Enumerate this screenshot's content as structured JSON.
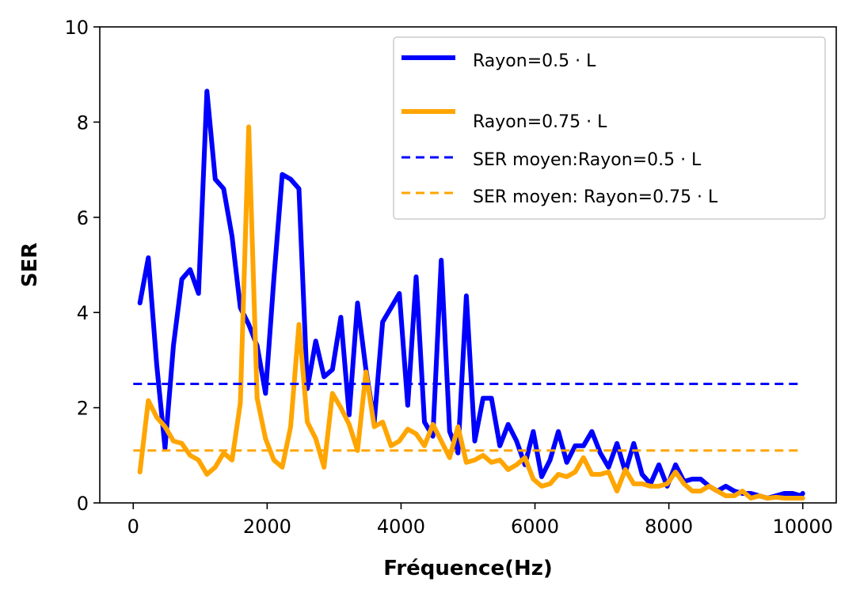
{
  "chart_data": {
    "type": "line",
    "title": "",
    "xlabel": "Fréquence(Hz)",
    "ylabel": "SER",
    "xlim": [
      -500,
      10500
    ],
    "ylim": [
      0,
      10
    ],
    "xticks": [
      0,
      2000,
      4000,
      6000,
      8000,
      10000
    ],
    "yticks": [
      0,
      2,
      4,
      6,
      8,
      10
    ],
    "grid": false,
    "legend_position": "top-right",
    "series": [
      {
        "name": "Rayon=0.5 · L",
        "color": "#0000ff",
        "style": "solid",
        "x": [
          100,
          225,
          350,
          475,
          600,
          725,
          850,
          975,
          1100,
          1225,
          1350,
          1475,
          1600,
          1725,
          1850,
          1975,
          2100,
          2225,
          2350,
          2475,
          2600,
          2725,
          2850,
          2975,
          3100,
          3225,
          3350,
          3475,
          3600,
          3725,
          3850,
          3975,
          4100,
          4225,
          4350,
          4475,
          4600,
          4725,
          4850,
          4975,
          5100,
          5225,
          5350,
          5475,
          5600,
          5725,
          5850,
          5975,
          6100,
          6225,
          6350,
          6475,
          6600,
          6725,
          6850,
          6975,
          7100,
          7225,
          7350,
          7475,
          7600,
          7725,
          7850,
          7975,
          8100,
          8225,
          8350,
          8475,
          8600,
          8725,
          8850,
          8975,
          9100,
          9225,
          9350,
          9475,
          9600,
          9725,
          9850,
          9975,
          10000
        ],
        "y": [
          4.2,
          5.15,
          2.9,
          1.15,
          3.3,
          4.7,
          4.9,
          4.4,
          8.65,
          6.8,
          6.6,
          5.6,
          4.1,
          3.75,
          3.3,
          2.3,
          4.7,
          6.9,
          6.8,
          6.6,
          2.4,
          3.4,
          2.65,
          2.8,
          3.9,
          1.85,
          4.2,
          2.8,
          1.7,
          3.8,
          4.1,
          4.4,
          2.05,
          4.75,
          1.7,
          1.4,
          5.1,
          1.5,
          1.05,
          4.35,
          1.3,
          2.2,
          2.2,
          1.2,
          1.65,
          1.3,
          0.8,
          1.5,
          0.55,
          0.9,
          1.5,
          0.85,
          1.2,
          1.2,
          1.5,
          1.05,
          0.75,
          1.25,
          0.65,
          1.25,
          0.6,
          0.4,
          0.8,
          0.35,
          0.8,
          0.45,
          0.5,
          0.5,
          0.35,
          0.25,
          0.35,
          0.25,
          0.2,
          0.2,
          0.15,
          0.1,
          0.15,
          0.2,
          0.2,
          0.15,
          0.2
        ]
      },
      {
        "name": "Rayon=0.75 ·  L",
        "color": "#ffa500",
        "style": "solid",
        "x": [
          100,
          225,
          350,
          475,
          600,
          725,
          850,
          975,
          1100,
          1225,
          1350,
          1475,
          1600,
          1725,
          1850,
          1975,
          2100,
          2225,
          2350,
          2475,
          2600,
          2725,
          2850,
          2975,
          3100,
          3225,
          3350,
          3475,
          3600,
          3725,
          3850,
          3975,
          4100,
          4225,
          4350,
          4475,
          4600,
          4725,
          4850,
          4975,
          5100,
          5225,
          5350,
          5475,
          5600,
          5725,
          5850,
          5975,
          6100,
          6225,
          6350,
          6475,
          6600,
          6725,
          6850,
          6975,
          7100,
          7225,
          7350,
          7475,
          7600,
          7725,
          7850,
          7975,
          8100,
          8225,
          8350,
          8475,
          8600,
          8725,
          8850,
          8975,
          9100,
          9225,
          9350,
          9475,
          9600,
          9725,
          9850,
          9975,
          10000
        ],
        "y": [
          0.65,
          2.15,
          1.8,
          1.6,
          1.3,
          1.25,
          1.0,
          0.9,
          0.6,
          0.75,
          1.05,
          0.9,
          2.1,
          7.9,
          2.2,
          1.35,
          0.9,
          0.75,
          1.6,
          3.75,
          1.7,
          1.35,
          0.75,
          2.3,
          2.0,
          1.65,
          1.1,
          2.75,
          1.6,
          1.7,
          1.2,
          1.3,
          1.55,
          1.45,
          1.2,
          1.65,
          1.3,
          0.95,
          1.6,
          0.85,
          0.9,
          1.0,
          0.85,
          0.9,
          0.7,
          0.8,
          0.95,
          0.5,
          0.35,
          0.4,
          0.6,
          0.55,
          0.65,
          0.95,
          0.6,
          0.6,
          0.65,
          0.25,
          0.7,
          0.4,
          0.4,
          0.35,
          0.35,
          0.4,
          0.65,
          0.4,
          0.25,
          0.25,
          0.35,
          0.25,
          0.15,
          0.15,
          0.25,
          0.1,
          0.15,
          0.1,
          0.12,
          0.1,
          0.1,
          0.1,
          0.1
        ]
      },
      {
        "name": "SER moyen:Rayon=0.5 · L",
        "color": "#0000ff",
        "style": "dashed",
        "x": [
          0,
          10000
        ],
        "y": [
          2.5,
          2.5
        ]
      },
      {
        "name": "SER moyen: Rayon=0.75 ·  L",
        "color": "#ffa500",
        "style": "dashed",
        "x": [
          0,
          10000
        ],
        "y": [
          1.1,
          1.1
        ]
      }
    ]
  }
}
